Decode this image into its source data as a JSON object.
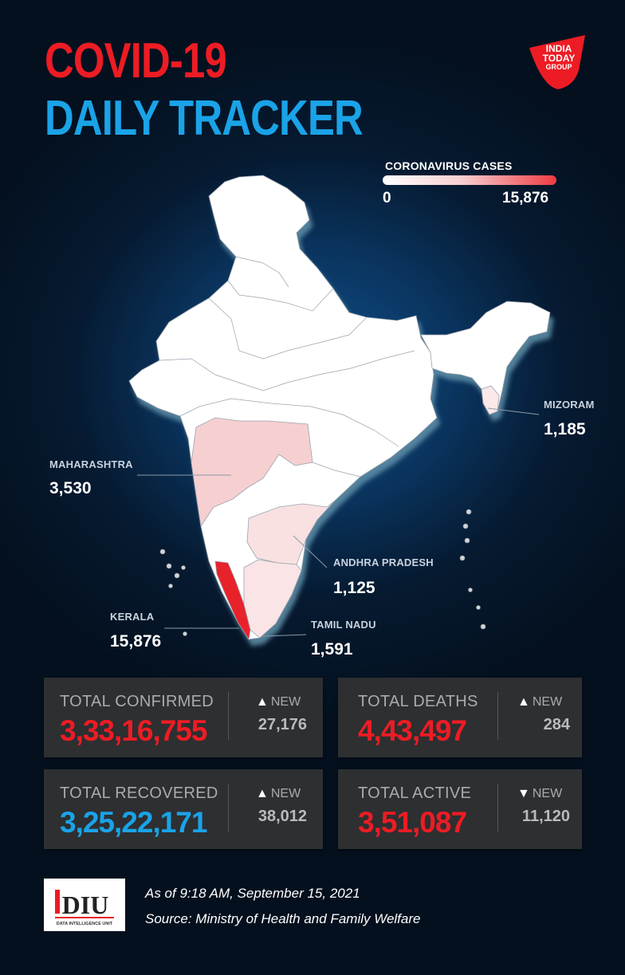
{
  "title": {
    "line1": "COVID-19",
    "line2": "DAILY TRACKER"
  },
  "logo": {
    "line1": "INDIA",
    "line2": "TODAY",
    "line3": "GROUP",
    "icon": "india-today-logo"
  },
  "legend": {
    "title": "CORONAVIRUS CASES",
    "min": "0",
    "max": "15,876"
  },
  "states": {
    "maharashtra": {
      "name": "MAHARASHTRA",
      "value": "3,530"
    },
    "mizoram": {
      "name": "MIZORAM",
      "value": "1,185"
    },
    "andhra": {
      "name": "ANDHRA PRADESH",
      "value": "1,125"
    },
    "kerala": {
      "name": "KERALA",
      "value": "15,876"
    },
    "tamilnadu": {
      "name": "TAMIL NADU",
      "value": "1,591"
    }
  },
  "stats": {
    "confirmed": {
      "label": "TOTAL CONFIRMED",
      "value": "3,33,16,755",
      "new_label": "NEW",
      "new_arrow": "▲",
      "new_value": "27,176"
    },
    "deaths": {
      "label": "TOTAL DEATHS",
      "value": "4,43,497",
      "new_label": "NEW",
      "new_arrow": "▲",
      "new_value": "284"
    },
    "recovered": {
      "label": "TOTAL RECOVERED",
      "value": "3,25,22,171",
      "new_label": "NEW",
      "new_arrow": "▲",
      "new_value": "38,012"
    },
    "active": {
      "label": "TOTAL ACTIVE",
      "value": "3,51,087",
      "new_label": "NEW",
      "new_arrow": "▼",
      "new_value": "11,120"
    }
  },
  "diu": {
    "text": "DIU",
    "subtext": "DATA INTELLIGENCE UNIT"
  },
  "footer": {
    "timestamp": "As of 9:18 AM, September 15, 2021",
    "source": "Source: Ministry of Health and Family Welfare"
  },
  "colors": {
    "accent_red": "#ed1c24",
    "accent_blue": "#1aa3e8",
    "card_bg": "#2d2f31"
  }
}
